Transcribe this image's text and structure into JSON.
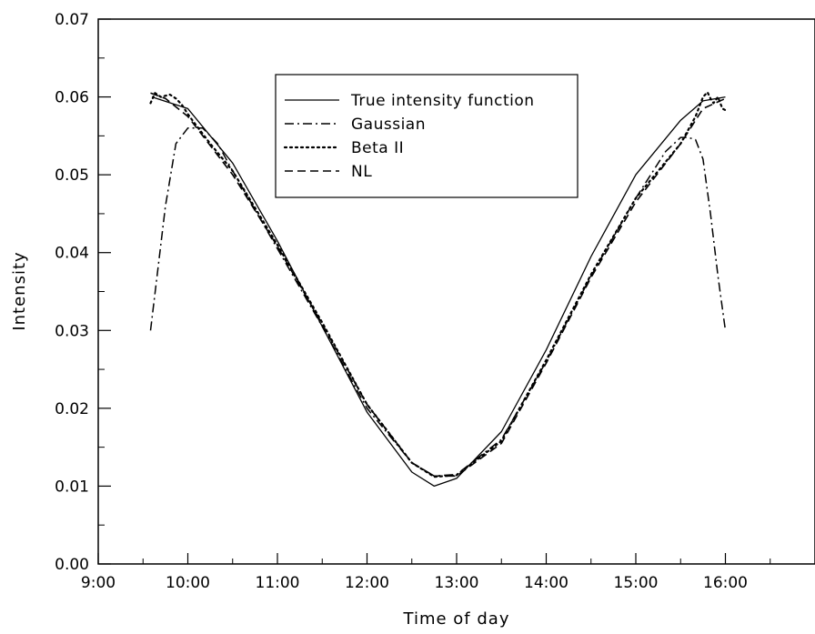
{
  "chart_data": {
    "type": "line",
    "xlabel": "Time of day",
    "ylabel": "Intensity",
    "xlim": [
      "9:00",
      "17:00"
    ],
    "ylim": [
      0.0,
      0.07
    ],
    "x_ticks": [
      "9:00",
      "10:00",
      "11:00",
      "12:00",
      "13:00",
      "14:00",
      "15:00",
      "16:00"
    ],
    "y_ticks": [
      "0.00",
      "0.01",
      "0.02",
      "0.03",
      "0.04",
      "0.05",
      "0.06",
      "0.07"
    ],
    "grid": false,
    "legend_position": "top-center",
    "series": [
      {
        "name": "True intensity function",
        "style": "solid",
        "x": [
          "9:36",
          "10:00",
          "10:30",
          "11:00",
          "11:30",
          "12:00",
          "12:30",
          "12:45",
          "13:00",
          "13:30",
          "14:00",
          "14:30",
          "15:00",
          "15:30",
          "15:45",
          "16:00"
        ],
        "values": [
          0.06,
          0.0585,
          0.0515,
          0.0415,
          0.0305,
          0.0195,
          0.0118,
          0.01,
          0.011,
          0.017,
          0.0275,
          0.0395,
          0.05,
          0.057,
          0.0595,
          0.06
        ]
      },
      {
        "name": "Gaussian",
        "style": "dashdot",
        "x": [
          "9:35",
          "9:45",
          "9:52",
          "10:00",
          "10:10",
          "10:20",
          "10:30",
          "11:00",
          "11:30",
          "12:00",
          "12:30",
          "12:45",
          "13:00",
          "13:30",
          "14:00",
          "14:30",
          "15:00",
          "15:20",
          "15:30",
          "15:35",
          "15:40",
          "15:45",
          "15:50",
          "15:55",
          "16:00"
        ],
        "values": [
          0.03,
          0.046,
          0.054,
          0.056,
          0.056,
          0.054,
          0.0505,
          0.0405,
          0.0305,
          0.02,
          0.013,
          0.0113,
          0.0115,
          0.016,
          0.026,
          0.037,
          0.047,
          0.053,
          0.0548,
          0.0548,
          0.0545,
          0.052,
          0.045,
          0.037,
          0.03
        ]
      },
      {
        "name": "Beta II",
        "style": "dotted",
        "x": [
          "9:35",
          "9:38",
          "9:42",
          "9:48",
          "9:52",
          "9:56",
          "10:00",
          "10:05",
          "10:15",
          "10:30",
          "11:00",
          "11:30",
          "12:00",
          "12:30",
          "12:45",
          "13:00",
          "13:30",
          "14:00",
          "14:30",
          "15:00",
          "15:30",
          "15:40",
          "15:45",
          "15:48",
          "15:50",
          "15:52",
          "15:55",
          "15:58",
          "16:00"
        ],
        "values": [
          0.0592,
          0.0605,
          0.06,
          0.0603,
          0.0598,
          0.059,
          0.0578,
          0.0565,
          0.054,
          0.0505,
          0.041,
          0.031,
          0.0205,
          0.013,
          0.0112,
          0.0114,
          0.0158,
          0.0262,
          0.0372,
          0.047,
          0.054,
          0.0575,
          0.06,
          0.0606,
          0.0598,
          0.0592,
          0.06,
          0.0585,
          0.0583
        ]
      },
      {
        "name": "NL",
        "style": "dashed",
        "x": [
          "9:35",
          "9:45",
          "10:00",
          "10:30",
          "11:00",
          "11:30",
          "12:00",
          "12:30",
          "12:45",
          "13:00",
          "13:30",
          "14:00",
          "14:30",
          "15:00",
          "15:30",
          "15:45",
          "16:00"
        ],
        "values": [
          0.0605,
          0.0598,
          0.0575,
          0.05,
          0.0408,
          0.0308,
          0.0205,
          0.013,
          0.0113,
          0.0113,
          0.0155,
          0.0258,
          0.0368,
          0.0465,
          0.054,
          0.0585,
          0.0598
        ]
      }
    ]
  }
}
